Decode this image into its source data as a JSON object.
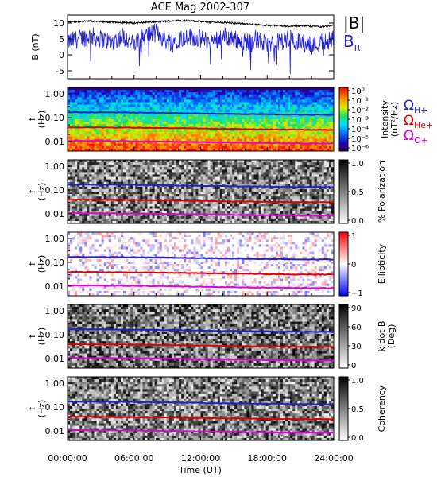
{
  "chart_data": [
    {
      "type": "line",
      "title": "ACE Mag 2002-307",
      "ylabel": "B (nT)",
      "yticks": [
        10,
        5,
        0,
        -5
      ],
      "ylim": [
        -7.5,
        12.5
      ],
      "xlim_hours": [
        0,
        24
      ],
      "series": [
        {
          "name": "|B|",
          "color": "#000000",
          "x": [
            0,
            1,
            2,
            3,
            4,
            5,
            6,
            7,
            8,
            9,
            10,
            11,
            12,
            13,
            14,
            15,
            16,
            17,
            18,
            19,
            20,
            21,
            22,
            23,
            24
          ],
          "values": [
            10.3,
            10.5,
            10.6,
            10.4,
            10.3,
            10.2,
            10.0,
            10.2,
            10.4,
            10.6,
            10.8,
            10.7,
            10.5,
            10.3,
            10.2,
            10.0,
            9.7,
            9.5,
            9.3,
            9.2,
            9.0,
            9.2,
            9.0,
            8.9,
            9.3
          ]
        },
        {
          "name": "BR",
          "color": "#1f1fd6",
          "x": [
            0,
            1,
            2,
            3,
            4,
            5,
            6,
            7,
            8,
            9,
            10,
            11,
            12,
            13,
            14,
            15,
            16,
            17,
            18,
            19,
            20,
            21,
            22,
            23,
            24
          ],
          "values": [
            4,
            5,
            6,
            5,
            4,
            6,
            3,
            6,
            7,
            4,
            5,
            6,
            5,
            4,
            6,
            5,
            4,
            5,
            3,
            4,
            5,
            4,
            3,
            4,
            5
          ]
        }
      ]
    },
    {
      "type": "heatmap",
      "ylabel": "f (Hz)",
      "yticks": [
        "1.00",
        "0.10",
        "0.01"
      ],
      "colorbar": {
        "label": "Intensity (nT²/Hz)",
        "ticks": [
          "10⁰",
          "10⁻¹",
          "10⁻²",
          "10⁻³",
          "10⁻⁴",
          "10⁻⁵",
          "10⁻⁶"
        ]
      },
      "lines": [
        {
          "name": "ΩH+",
          "color": "#2020d0",
          "freq": 0.15
        },
        {
          "name": "ΩHe+",
          "color": "#e00000",
          "freq": 0.035
        },
        {
          "name": "ΩO+",
          "color": "#e000e0",
          "freq": 0.0095
        }
      ]
    },
    {
      "type": "heatmap",
      "ylabel": "f (Hz)",
      "yticks": [
        "1.00",
        "0.10",
        "0.01"
      ],
      "colorbar": {
        "label": "% Polarization",
        "ticks": [
          "1.0",
          "0.5",
          "0.0"
        ]
      }
    },
    {
      "type": "heatmap",
      "ylabel": "f (Hz)",
      "yticks": [
        "1.00",
        "0.10",
        "0.01"
      ],
      "colorbar": {
        "label": "Ellipticity",
        "ticks": [
          "1",
          "0",
          "−1"
        ]
      }
    },
    {
      "type": "heatmap",
      "ylabel": "f (Hz)",
      "yticks": [
        "1.00",
        "0.10",
        "0.01"
      ],
      "colorbar": {
        "label": "k dot B (Deg)",
        "ticks": [
          "90",
          "60",
          "30",
          "0"
        ]
      }
    },
    {
      "type": "heatmap",
      "ylabel": "f (Hz)",
      "yticks": [
        "1.00",
        "0.10",
        "0.01"
      ],
      "colorbar": {
        "label": "Coherency",
        "ticks": [
          "1.0",
          "0.5",
          "0.0"
        ]
      }
    }
  ],
  "xaxis": {
    "label": "Time (UT)",
    "ticks": [
      "00:00:00",
      "06:00:00",
      "12:00:00",
      "18:00:00",
      "24:00:00"
    ]
  },
  "legend": {
    "absB": "|B|",
    "br_main": "B",
    "br_sub": "R",
    "omega": "Ω",
    "h_sub": "H+",
    "he_sub": "He+",
    "o_sub": "O+"
  },
  "colors": {
    "absB": "#000000",
    "br": "#1f1fd6",
    "h": "#2020d0",
    "he": "#e00000",
    "o": "#e000e0"
  }
}
